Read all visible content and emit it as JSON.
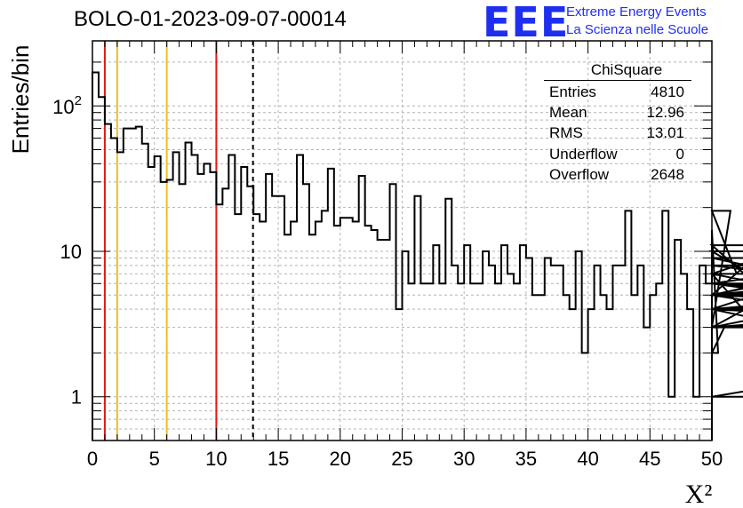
{
  "header": {
    "title": "BOLO-01-2023-09-07-00014",
    "logo_text": "EEE",
    "tagline_1": "Extreme Energy Events",
    "tagline_2": "La Scienza nelle Scuole"
  },
  "stats_box": {
    "name": "ChiSquare",
    "rows": [
      {
        "label": "Entries",
        "value": "4810"
      },
      {
        "label": "Mean",
        "value": "12.96"
      },
      {
        "label": "RMS",
        "value": "13.01"
      },
      {
        "label": "Underflow",
        "value": "0"
      },
      {
        "label": "Overflow",
        "value": "2648"
      }
    ]
  },
  "colors": {
    "logo": "#1f2ff0",
    "red_line": "#e01818",
    "yellow_line": "#f0c020",
    "histogram": "#000000",
    "grid": "#b4b4b4"
  },
  "chart_data": {
    "type": "bar",
    "histogram": true,
    "title": "BOLO-01-2023-09-07-00014",
    "xlabel": "X²",
    "ylabel": "Entries/bin",
    "xlim": [
      0,
      50
    ],
    "ylim": [
      0.5,
      280
    ],
    "y_scale": "log",
    "grid": true,
    "bin_width": 0.5,
    "x_ticks": [
      "0",
      "5",
      "10",
      "15",
      "20",
      "25",
      "30",
      "35",
      "40",
      "45",
      "50"
    ],
    "y_ticks": [
      {
        "value": 1,
        "label": "1"
      },
      {
        "value": 10,
        "label": "10"
      },
      {
        "value": 100,
        "label": "10",
        "exponent": "2"
      }
    ],
    "values": [
      170,
      115,
      75,
      60,
      48,
      70,
      70,
      72,
      55,
      38,
      45,
      30,
      31,
      48,
      29,
      56,
      46,
      34,
      40,
      35,
      21,
      27,
      46,
      18,
      38,
      28,
      18,
      16,
      34,
      24,
      24,
      13,
      16,
      46,
      29,
      13,
      16,
      19,
      37,
      15,
      17,
      17,
      16,
      33,
      15,
      14,
      12,
      12,
      29,
      4,
      10,
      6,
      24,
      6,
      6,
      11,
      6,
      23,
      8,
      6,
      11,
      6,
      6,
      10,
      8,
      6,
      11,
      7,
      6,
      11,
      9,
      5,
      5,
      9,
      8,
      8,
      5,
      4,
      10,
      2,
      4,
      8,
      5,
      4,
      8,
      8,
      19,
      5,
      8,
      3,
      5,
      6,
      19,
      1,
      12,
      7,
      4,
      1,
      8,
      6,
      14,
      2,
      3,
      19,
      7,
      4,
      4,
      5,
      10,
      6,
      6,
      7,
      7,
      7,
      11,
      3,
      7,
      5,
      6,
      6,
      5,
      5,
      5,
      8,
      6,
      6,
      5,
      9,
      5,
      6,
      6,
      4,
      5,
      3,
      3,
      6,
      5,
      5,
      5,
      6,
      6,
      5,
      5,
      6,
      6,
      4,
      4,
      6,
      6,
      4,
      6,
      6,
      5,
      4,
      4,
      3,
      3,
      4,
      3,
      3,
      4,
      4,
      5,
      6,
      6,
      4,
      1,
      3,
      3,
      5
    ],
    "reference_lines": [
      {
        "x": 1,
        "color": "red",
        "style": "solid"
      },
      {
        "x": 2,
        "color": "yellow",
        "style": "solid"
      },
      {
        "x": 6,
        "color": "yellow",
        "style": "solid"
      },
      {
        "x": 10,
        "color": "red",
        "style": "solid"
      },
      {
        "x": 12.96,
        "color": "black",
        "style": "dashed"
      }
    ]
  }
}
